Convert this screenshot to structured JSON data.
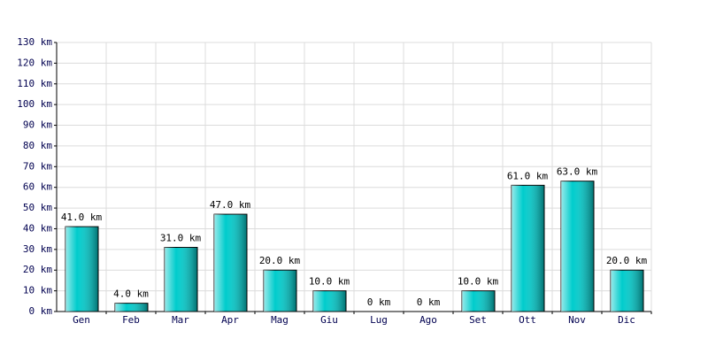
{
  "chart_data": {
    "type": "bar",
    "categories": [
      "Gen",
      "Feb",
      "Mar",
      "Apr",
      "Mag",
      "Giu",
      "Lug",
      "Ago",
      "Set",
      "Ott",
      "Nov",
      "Dic"
    ],
    "values": [
      41,
      4,
      31,
      47,
      20,
      10,
      0,
      0,
      10,
      61,
      63,
      20
    ],
    "value_labels": [
      "41.0 km",
      "4.0 km",
      "31.0 km",
      "47.0 km",
      "20.0 km",
      "10.0 km",
      "0 km",
      "0 km",
      "10.0 km",
      "61.0 km",
      "63.0 km",
      "20.0 km"
    ],
    "color": "#00cccc",
    "ylim": [
      0,
      130
    ],
    "yticks": [
      {
        "value": 0,
        "label": "0 km"
      },
      {
        "value": 10,
        "label": "10 km"
      },
      {
        "value": 20,
        "label": "20 km"
      },
      {
        "value": 30,
        "label": "30 km"
      },
      {
        "value": 40,
        "label": "40 km"
      },
      {
        "value": 50,
        "label": "50 km"
      },
      {
        "value": 60,
        "label": "60 km"
      },
      {
        "value": 70,
        "label": "70 km"
      },
      {
        "value": 80,
        "label": "80 km"
      },
      {
        "value": 90,
        "label": "90 km"
      },
      {
        "value": 100,
        "label": "100 km"
      },
      {
        "value": 110,
        "label": "110 km"
      },
      {
        "value": 120,
        "label": "120 km"
      },
      {
        "value": 130,
        "label": "130 km"
      }
    ],
    "grid": true
  }
}
